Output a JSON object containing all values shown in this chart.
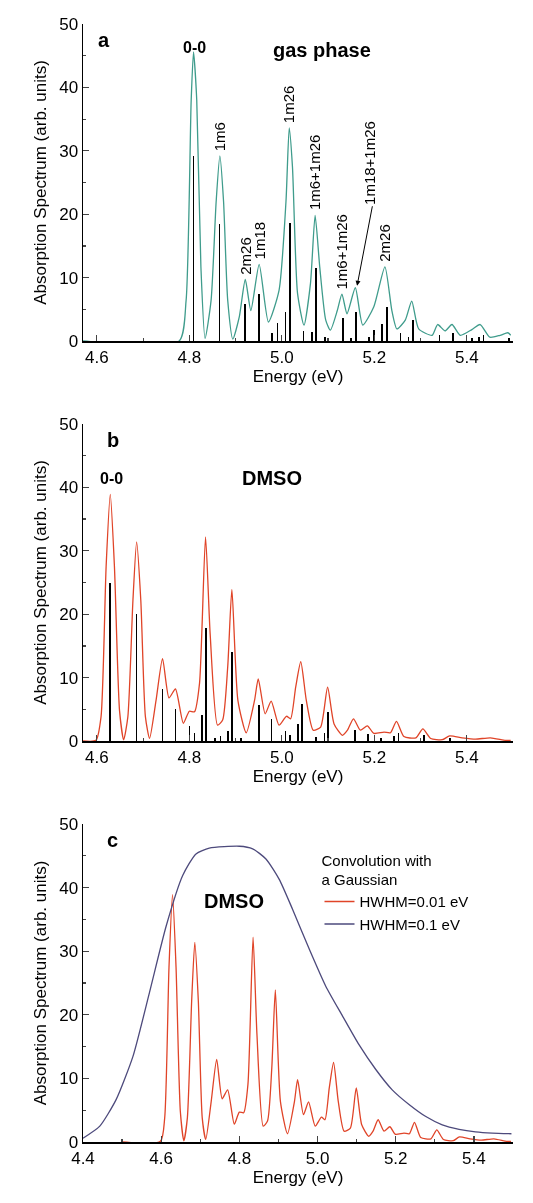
{
  "chart_data": [
    {
      "type": "line",
      "xlabel": "Energy (eV)",
      "ylabel": "Absorption Spectrum (arb. units)",
      "xlim": [
        4.57,
        5.5
      ],
      "ylim": [
        0,
        50
      ],
      "xticks": [
        4.6,
        {
          "value": 4.7,
          "label": null
        },
        4.8,
        {
          "value": 4.9,
          "label": null
        },
        {
          "value": 5,
          "label": "5.0"
        },
        {
          "value": 5.1,
          "label": null
        },
        5.2,
        {
          "value": 5.3,
          "label": null
        },
        5.4
      ],
      "yticks": [
        0,
        {
          "value": 5,
          "label": null
        },
        10,
        {
          "value": 15,
          "label": null
        },
        20,
        {
          "value": 25,
          "label": null
        },
        30,
        {
          "value": 35,
          "label": null
        },
        40,
        {
          "value": 45,
          "label": null
        },
        50
      ],
      "grid": false,
      "legend": false,
      "annotations": [
        "a",
        "0-0",
        "gas phase",
        {
          "text": "1m6",
          "x": 4.866,
          "y": 29.2
        },
        {
          "text": "2m26",
          "x": 4.921,
          "y": 9.7
        },
        {
          "text": "1m18",
          "x": 4.951,
          "y": 12.1
        },
        {
          "text": "1m26",
          "x": 5.016,
          "y": 33.6
        },
        {
          "text": "1m6+1m26",
          "x": 5.072,
          "y": 19.8
        },
        {
          "text": "1m6+1m26",
          "x": 5.13,
          "y": 7.4
        },
        {
          "text": "1m18+1m26",
          "x": 5.162,
          "y": 8.4
        },
        {
          "text": "2m26",
          "x": 5.223,
          "y": 11.7
        }
      ],
      "series": [
        {
          "color": "#3f9c8c",
          "x": [
            4.57,
            4.778,
            4.793,
            4.804,
            4.809,
            4.816,
            4.825,
            4.834,
            4.847,
            4.858,
            4.866,
            4.874,
            4.883,
            4.894,
            4.908,
            4.921,
            4.933,
            4.951,
            4.971,
            4.994,
            5.009,
            5.016,
            5.023,
            5.034,
            5.048,
            5.062,
            5.072,
            5.082,
            5.095,
            5.105,
            5.12,
            5.13,
            5.141,
            5.159,
            5.175,
            5.199,
            5.223,
            5.238,
            5.249,
            5.267,
            5.281,
            5.296,
            5.325,
            5.337,
            5.353,
            5.368,
            5.386,
            5.411,
            5.429,
            5.45,
            5.472,
            5.489,
            5.495
          ],
          "values": [
            0,
            0,
            6.4,
            38,
            45.6,
            38,
            11.7,
            0.4,
            6.4,
            22,
            29.2,
            22,
            6.4,
            0.3,
            3.8,
            9.7,
            4.8,
            12.1,
            3.0,
            8,
            22,
            33.6,
            27.5,
            7.5,
            2.5,
            9.1,
            19.8,
            11.7,
            3.3,
            1.7,
            4.8,
            7.4,
            4.3,
            8.4,
            2.5,
            5.4,
            11.7,
            4.8,
            1.9,
            3.3,
            6.3,
            1.9,
            0.9,
            2.6,
            1.6,
            2.6,
            0.9,
            1.8,
            2.6,
            0.6,
            0.9,
            1.3,
            0.9
          ]
        },
        {
          "type": "bar",
          "color": "#000000",
          "x": [
            4.809,
            4.865,
            4.921,
            4.951,
            4.979,
            4.991,
            5.008,
            5.018,
            5.047,
            5.065,
            5.074,
            5.093,
            5.132,
            5.15,
            5.16,
            5.189,
            5.2,
            5.216,
            5.227,
            5.257,
            5.274,
            5.284,
            5.341,
            5.37,
            5.411,
            5.426,
            5.436,
            5.492
          ],
          "values": [
            29.2,
            18.5,
            5.8,
            7.4,
            1.3,
            2.8,
            4.5,
            18.6,
            1.6,
            1.4,
            11.5,
            0.7,
            3.6,
            0.4,
            4.5,
            0.6,
            1.8,
            2.7,
            5.4,
            1.2,
            0.7,
            3.3,
            0.9,
            1.3,
            0.5,
            0.7,
            0.9,
            0.4
          ]
        }
      ]
    },
    {
      "type": "line",
      "xlabel": "Energy (eV)",
      "ylabel": "Absorption Spectrum (arb. units)",
      "xlim": [
        4.57,
        5.5
      ],
      "ylim": [
        0,
        50
      ],
      "xticks": [
        4.6,
        {
          "value": 4.7,
          "label": null
        },
        4.8,
        {
          "value": 4.9,
          "label": null
        },
        {
          "value": 5,
          "label": "5.0"
        },
        {
          "value": 5.1,
          "label": null
        },
        5.2,
        {
          "value": 5.3,
          "label": null
        },
        5.4
      ],
      "yticks": [
        0,
        {
          "value": 5,
          "label": null
        },
        10,
        {
          "value": 15,
          "label": null
        },
        20,
        {
          "value": 25,
          "label": null
        },
        30,
        {
          "value": 35,
          "label": null
        },
        40,
        {
          "value": 45,
          "label": null
        },
        50
      ],
      "grid": false,
      "legend": false,
      "annotations": [
        "b",
        "0-0",
        "DMSO"
      ],
      "series": [
        {
          "color": "#e04428",
          "x": [
            4.57,
            4.598,
            4.609,
            4.62,
            4.629,
            4.638,
            4.649,
            4.658,
            4.667,
            4.678,
            4.686,
            4.695,
            4.705,
            4.714,
            4.728,
            4.742,
            4.756,
            4.77,
            4.787,
            4.8,
            4.811,
            4.822,
            4.835,
            4.845,
            4.861,
            4.872,
            4.883,
            4.892,
            4.905,
            4.923,
            4.941,
            4.949,
            4.964,
            4.977,
            4.994,
            5.01,
            5.019,
            5.03,
            5.041,
            5.053,
            5.068,
            5.084,
            5.099,
            5.113,
            5.131,
            5.142,
            5.155,
            5.17,
            5.185,
            5.199,
            5.221,
            5.235,
            5.248,
            5.264,
            5.29,
            5.305,
            5.322,
            5.347,
            5.363,
            5.39,
            5.419,
            5.451,
            5.484,
            5.495
          ],
          "values": [
            0,
            0.1,
            3.8,
            27.5,
            38.9,
            27.5,
            4.8,
            0.2,
            3.8,
            22.2,
            31.4,
            22.2,
            3.8,
            0.4,
            6.4,
            13.0,
            6.8,
            8.2,
            2.8,
            4.7,
            4.6,
            9.1,
            32.2,
            16.9,
            2.5,
            3.3,
            11.7,
            23.9,
            6.4,
            1.3,
            6.4,
            9.8,
            4.3,
            6.3,
            2.5,
            3.9,
            3.5,
            8.5,
            12.5,
            6.4,
            1.7,
            2.2,
            8.5,
            2.7,
            0.9,
            1.7,
            3.5,
            1.7,
            2.4,
            1.2,
            1.4,
            1.3,
            3.1,
            0.7,
            0.5,
            1.9,
            0.4,
            0.2,
            0.8,
            0.5,
            0.3,
            0.5,
            0.1,
            0.1
          ]
        },
        {
          "type": "bar",
          "color": "#000000",
          "x": [
            4.629,
            4.686,
            4.742,
            4.77,
            4.8,
            4.811,
            4.827,
            4.836,
            4.856,
            4.867,
            4.884,
            4.892,
            4.912,
            4.95,
            4.978,
            5.008,
            5.018,
            5.035,
            5.043,
            5.074,
            5.092,
            5.1,
            5.158,
            5.187,
            5.215,
            5.243,
            5.252,
            5.308,
            5.364
          ],
          "values": [
            24.9,
            20.1,
            8.2,
            5.1,
            2.3,
            1.2,
            4.1,
            17.8,
            0.5,
            0.8,
            1.6,
            14.0,
            0.4,
            5.7,
            3.5,
            1.6,
            0.9,
            2.7,
            5.8,
            0.6,
            1.2,
            4.5,
            1.7,
            1.1,
            0.5,
            0.8,
            1.2,
            0.9,
            0.4
          ]
        }
      ]
    },
    {
      "type": "line",
      "xlabel": "Energy (eV)",
      "ylabel": "Absorption Spectrum (arb. units)",
      "xlim": [
        4.4,
        5.5
      ],
      "ylim": [
        0,
        50
      ],
      "xticks": [
        4.4,
        {
          "value": 4.5,
          "label": null
        },
        4.6,
        {
          "value": 4.7,
          "label": null
        },
        4.8,
        {
          "value": 4.9,
          "label": null
        },
        {
          "value": 5,
          "label": "5.0"
        },
        {
          "value": 5.1,
          "label": null
        },
        5.2,
        {
          "value": 5.3,
          "label": null
        },
        5.4
      ],
      "yticks": [
        0,
        {
          "value": 5,
          "label": null
        },
        10,
        {
          "value": 15,
          "label": null
        },
        20,
        {
          "value": 25,
          "label": null
        },
        30,
        {
          "value": 35,
          "label": null
        },
        40,
        {
          "value": 45,
          "label": null
        },
        50
      ],
      "grid": false,
      "legend": "top right",
      "legend_title": "Convolution with a Gaussian",
      "annotations": [
        "c",
        "DMSO"
      ],
      "series": [
        {
          "name": "HWHM=0.01 eV",
          "color": "#e04428",
          "x": [
            4.5,
            4.598,
            4.609,
            4.62,
            4.629,
            4.638,
            4.649,
            4.658,
            4.667,
            4.678,
            4.686,
            4.695,
            4.705,
            4.714,
            4.728,
            4.742,
            4.756,
            4.77,
            4.787,
            4.8,
            4.811,
            4.822,
            4.835,
            4.845,
            4.861,
            4.872,
            4.883,
            4.892,
            4.905,
            4.923,
            4.941,
            4.949,
            4.964,
            4.977,
            4.994,
            5.01,
            5.019,
            5.03,
            5.041,
            5.053,
            5.068,
            5.084,
            5.099,
            5.113,
            5.131,
            5.142,
            5.155,
            5.17,
            5.185,
            5.199,
            5.221,
            5.235,
            5.248,
            5.264,
            5.29,
            5.305,
            5.322,
            5.347,
            5.363,
            5.39,
            5.419,
            5.451,
            5.484,
            5.495
          ],
          "values": [
            0,
            0.1,
            3.8,
            27.5,
            38.9,
            27.5,
            4.8,
            0.2,
            3.8,
            22.2,
            31.4,
            22.2,
            3.8,
            0.4,
            6.4,
            13.0,
            6.8,
            8.2,
            2.8,
            4.7,
            4.6,
            9.1,
            32.2,
            16.9,
            2.5,
            3.3,
            11.7,
            23.9,
            6.4,
            1.3,
            6.4,
            9.8,
            4.3,
            6.3,
            2.5,
            3.9,
            3.5,
            8.5,
            12.5,
            6.4,
            1.7,
            2.2,
            8.5,
            2.7,
            0.9,
            1.7,
            3.5,
            1.7,
            2.4,
            1.2,
            1.4,
            1.3,
            3.1,
            0.7,
            0.5,
            1.9,
            0.4,
            0.2,
            0.8,
            0.5,
            0.3,
            0.5,
            0.1,
            0.1
          ]
        },
        {
          "name": "HWHM=0.1 eV",
          "color": "#4d4a7c",
          "x": [
            4.4,
            4.443,
            4.485,
            4.528,
            4.57,
            4.613,
            4.655,
            4.689,
            4.723,
            4.8,
            4.834,
            4.868,
            4.902,
            4.936,
            4.979,
            5.021,
            5.064,
            5.106,
            5.149,
            5.191,
            5.234,
            5.277,
            5.319,
            5.362,
            5.404,
            5.447,
            5.496
          ],
          "values": [
            0.6,
            2.5,
            6.7,
            13.5,
            23.5,
            34,
            41.9,
            45.3,
            46.2,
            46.5,
            46.1,
            44.5,
            41.3,
            36.6,
            30.3,
            24.5,
            19.8,
            15.3,
            11.4,
            8.2,
            5.9,
            4.0,
            2.7,
            2.0,
            1.6,
            1.4,
            1.3
          ]
        }
      ]
    }
  ]
}
